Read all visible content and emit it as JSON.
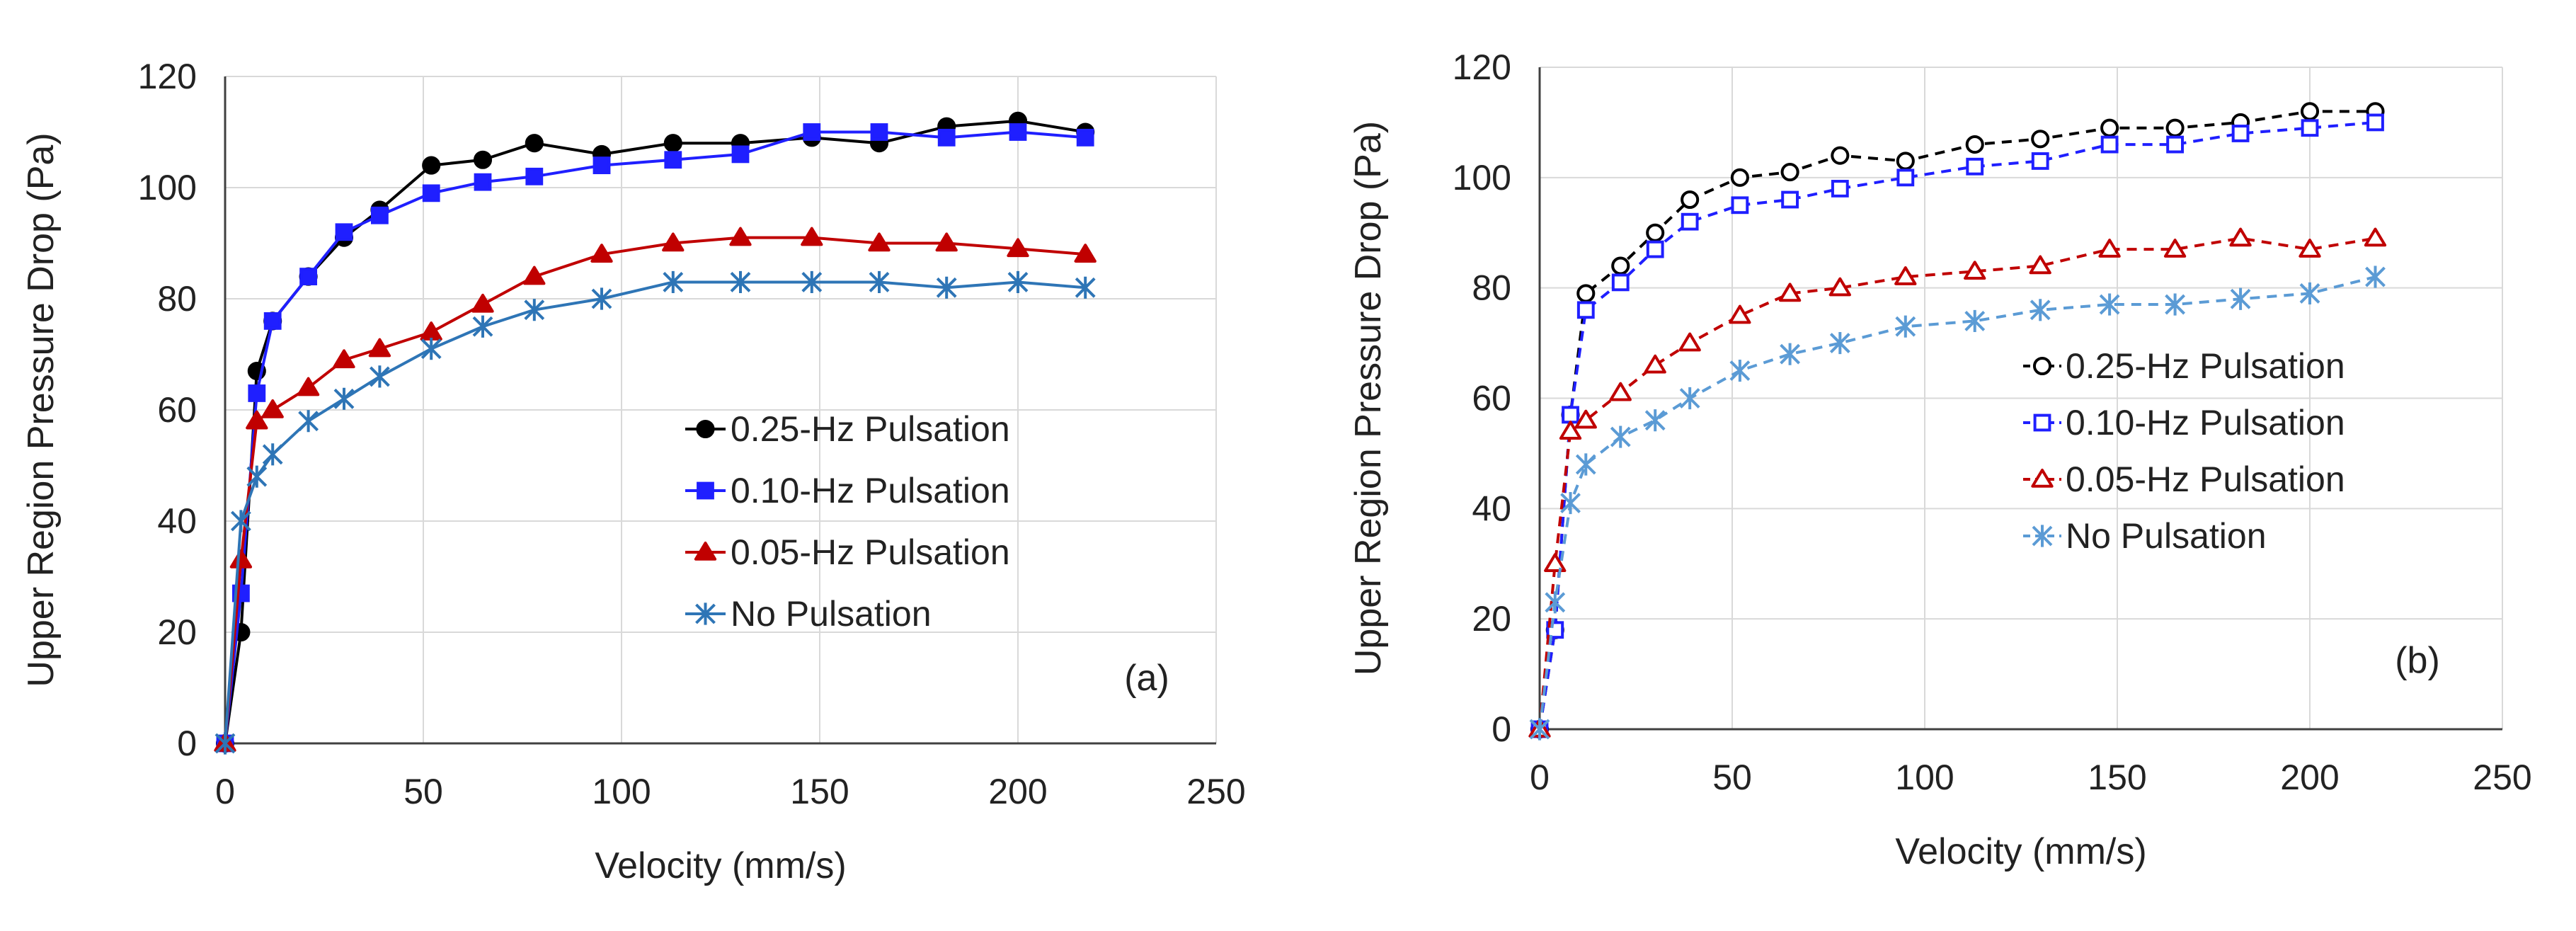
{
  "chart_data": [
    {
      "type": "line",
      "panel_label": "(a)",
      "title": "",
      "xlabel": "Velocity (mm/s)",
      "ylabel": "Upper Region Pressure Drop (Pa)",
      "xlim": [
        0,
        250
      ],
      "ylim": [
        0,
        120
      ],
      "xticks": [
        "0",
        "50",
        "100",
        "150",
        "200",
        "250"
      ],
      "yticks": [
        "0",
        "20",
        "40",
        "60",
        "80",
        "100",
        "120"
      ],
      "grid": true,
      "legend_position": "center-right",
      "series": [
        {
          "name": "0.25-Hz Pulsation",
          "color": "#000000",
          "marker": "circle",
          "marker_fill": "filled",
          "line_style": "solid",
          "x": [
            0,
            4,
            8,
            12,
            21,
            30,
            39,
            52,
            65,
            78,
            95,
            113,
            130,
            148,
            165,
            182,
            200,
            217
          ],
          "y": [
            0,
            20,
            67,
            76,
            84,
            91,
            96,
            104,
            105,
            108,
            106,
            108,
            108,
            109,
            108,
            111,
            112,
            110
          ]
        },
        {
          "name": "0.10-Hz Pulsation",
          "color": "#1f1fff",
          "marker": "square",
          "marker_fill": "filled",
          "line_style": "solid",
          "x": [
            0,
            4,
            8,
            12,
            21,
            30,
            39,
            52,
            65,
            78,
            95,
            113,
            130,
            148,
            165,
            182,
            200,
            217
          ],
          "y": [
            0,
            27,
            63,
            76,
            84,
            92,
            95,
            99,
            101,
            102,
            104,
            105,
            106,
            110,
            110,
            109,
            110,
            109
          ]
        },
        {
          "name": "0.05-Hz Pulsation",
          "color": "#c00000",
          "marker": "triangle",
          "marker_fill": "filled",
          "line_style": "solid",
          "x": [
            0,
            4,
            8,
            12,
            21,
            30,
            39,
            52,
            65,
            78,
            95,
            113,
            130,
            148,
            165,
            182,
            200,
            217
          ],
          "y": [
            0,
            33,
            58,
            60,
            64,
            69,
            71,
            74,
            79,
            84,
            88,
            90,
            91,
            91,
            90,
            90,
            89,
            88
          ]
        },
        {
          "name": "No Pulsation",
          "color": "#2e75b6",
          "marker": "asterisk",
          "marker_fill": "none",
          "line_style": "solid",
          "x": [
            0,
            4,
            8,
            12,
            21,
            30,
            39,
            52,
            65,
            78,
            95,
            113,
            130,
            148,
            165,
            182,
            200,
            217
          ],
          "y": [
            0,
            40,
            48,
            52,
            58,
            62,
            66,
            71,
            75,
            78,
            80,
            83,
            83,
            83,
            83,
            82,
            83,
            82
          ]
        }
      ]
    },
    {
      "type": "line",
      "panel_label": "(b)",
      "title": "",
      "xlabel": "Velocity (mm/s)",
      "ylabel": "Upper Region Pressure Drop (Pa)",
      "xlim": [
        0,
        250
      ],
      "ylim": [
        0,
        120
      ],
      "xticks": [
        "0",
        "50",
        "100",
        "150",
        "200",
        "250"
      ],
      "yticks": [
        "0",
        "20",
        "40",
        "60",
        "80",
        "100",
        "120"
      ],
      "grid": true,
      "legend_position": "center-right",
      "series": [
        {
          "name": "0.25-Hz Pulsation",
          "color": "#000000",
          "marker": "circle",
          "marker_fill": "hollow",
          "line_style": "dashed",
          "x": [
            0,
            4,
            8,
            12,
            21,
            30,
            39,
            52,
            65,
            78,
            95,
            113,
            130,
            148,
            165,
            182,
            200,
            217
          ],
          "y": [
            0,
            18,
            57,
            79,
            84,
            90,
            96,
            100,
            101,
            104,
            103,
            106,
            107,
            109,
            109,
            110,
            112,
            112
          ]
        },
        {
          "name": "0.10-Hz Pulsation",
          "color": "#1f1fff",
          "marker": "square",
          "marker_fill": "hollow",
          "line_style": "dashed",
          "x": [
            0,
            4,
            8,
            12,
            21,
            30,
            39,
            52,
            65,
            78,
            95,
            113,
            130,
            148,
            165,
            182,
            200,
            217
          ],
          "y": [
            0,
            18,
            57,
            76,
            81,
            87,
            92,
            95,
            96,
            98,
            100,
            102,
            103,
            106,
            106,
            108,
            109,
            110
          ]
        },
        {
          "name": "0.05-Hz Pulsation",
          "color": "#c00000",
          "marker": "triangle",
          "marker_fill": "hollow",
          "line_style": "dashed",
          "x": [
            0,
            4,
            8,
            12,
            21,
            30,
            39,
            52,
            65,
            78,
            95,
            113,
            130,
            148,
            165,
            182,
            200,
            217
          ],
          "y": [
            0,
            30,
            54,
            56,
            61,
            66,
            70,
            75,
            79,
            80,
            82,
            83,
            84,
            87,
            87,
            89,
            87,
            89
          ]
        },
        {
          "name": "No Pulsation",
          "color": "#5b9bd5",
          "marker": "asterisk",
          "marker_fill": "none",
          "line_style": "dashed",
          "x": [
            0,
            4,
            8,
            12,
            21,
            30,
            39,
            52,
            65,
            78,
            95,
            113,
            130,
            148,
            165,
            182,
            200,
            217
          ],
          "y": [
            0,
            23,
            41,
            48,
            53,
            56,
            60,
            65,
            68,
            70,
            73,
            74,
            76,
            77,
            77,
            78,
            79,
            82
          ]
        }
      ]
    }
  ]
}
